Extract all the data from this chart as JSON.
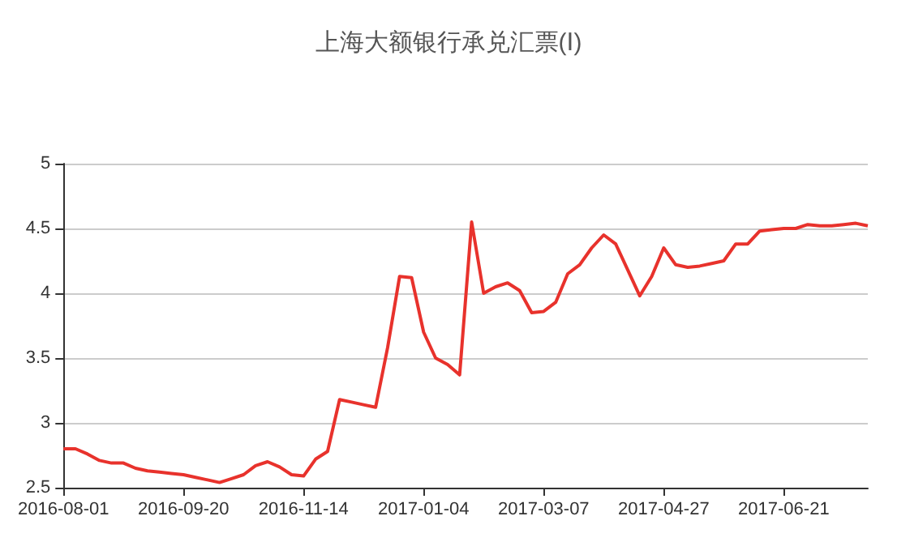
{
  "chart_data": {
    "type": "line",
    "title": "上海大额银行承兑汇票(Ⅰ)",
    "categories": [
      "2016-08-01",
      null,
      null,
      null,
      null,
      null,
      null,
      null,
      null,
      null,
      "2016-09-20",
      null,
      null,
      null,
      null,
      null,
      null,
      null,
      null,
      null,
      "2016-11-14",
      null,
      null,
      null,
      null,
      null,
      null,
      null,
      null,
      null,
      "2017-01-04",
      null,
      null,
      null,
      null,
      null,
      null,
      null,
      null,
      null,
      "2017-03-07",
      null,
      null,
      null,
      null,
      null,
      null,
      null,
      null,
      null,
      "2017-04-27",
      null,
      null,
      null,
      null,
      null,
      null,
      null,
      null,
      null,
      "2017-06-21",
      null,
      null,
      null,
      null,
      null,
      null,
      null
    ],
    "series": [
      {
        "color": "#e8322c",
        "values": [
          2.8,
          2.8,
          2.76,
          2.71,
          2.69,
          2.69,
          2.65,
          2.63,
          2.62,
          2.61,
          2.6,
          2.58,
          2.56,
          2.54,
          2.57,
          2.6,
          2.67,
          2.7,
          2.66,
          2.6,
          2.59,
          2.72,
          2.78,
          3.18,
          3.16,
          3.14,
          3.12,
          3.58,
          4.13,
          4.12,
          3.7,
          3.5,
          3.45,
          3.37,
          4.55,
          4.0,
          4.05,
          4.08,
          4.02,
          3.85,
          3.86,
          3.93,
          4.15,
          4.22,
          4.35,
          4.45,
          4.38,
          4.18,
          3.98,
          4.13,
          4.35,
          4.22,
          4.2,
          4.21,
          4.23,
          4.25,
          4.38,
          4.38,
          4.48,
          4.49,
          4.5,
          4.5,
          4.53,
          4.52,
          4.52,
          4.53,
          4.54,
          4.52
        ]
      }
    ],
    "ylim": [
      2.5,
      5
    ],
    "yticks": [
      2.5,
      3,
      3.5,
      4,
      4.5,
      5
    ],
    "grid": "y",
    "marker": "none",
    "line_style": "solid"
  }
}
